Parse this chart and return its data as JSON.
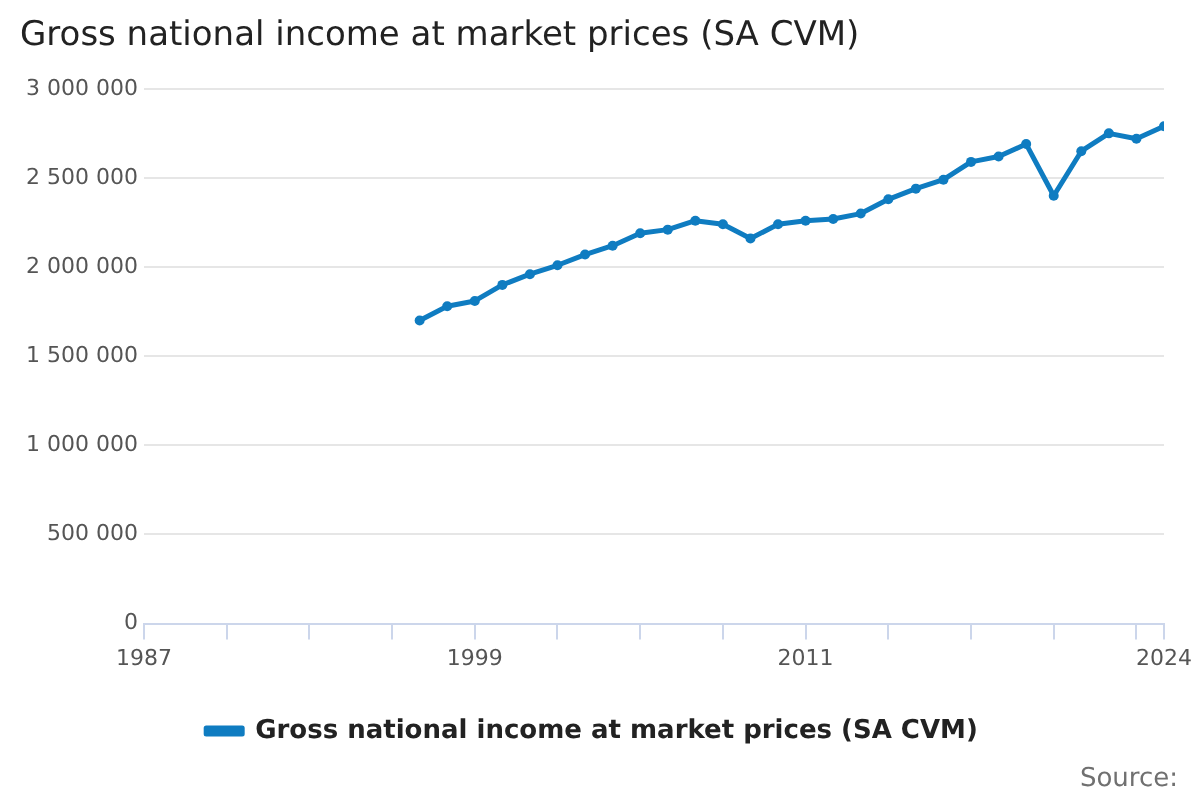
{
  "chart_data": {
    "type": "line",
    "title": "Gross national income at market prices (SA CVM)",
    "x": [
      1997,
      1998,
      1999,
      2000,
      2001,
      2002,
      2003,
      2004,
      2005,
      2006,
      2007,
      2008,
      2009,
      2010,
      2011,
      2012,
      2013,
      2014,
      2015,
      2016,
      2017,
      2018,
      2019,
      2020,
      2021,
      2022,
      2023,
      2024
    ],
    "series": [
      {
        "name": "Gross national income at market prices (SA CVM)",
        "color": "#0f7cc1",
        "values": [
          1700000,
          1780000,
          1810000,
          1900000,
          1960000,
          2010000,
          2070000,
          2120000,
          2190000,
          2210000,
          2260000,
          2240000,
          2160000,
          2240000,
          2260000,
          2270000,
          2300000,
          2380000,
          2440000,
          2490000,
          2590000,
          2620000,
          2690000,
          2400000,
          2650000,
          2750000,
          2720000,
          2790000
        ]
      }
    ],
    "xlim": [
      1987,
      2024
    ],
    "xticks": [
      1987,
      {
        "value": 1990,
        "label": null
      },
      {
        "value": 1993,
        "label": null
      },
      {
        "value": 1996,
        "label": null
      },
      1999,
      {
        "value": 2002,
        "label": null
      },
      {
        "value": 2005,
        "label": null
      },
      {
        "value": 2008,
        "label": null
      },
      2011,
      {
        "value": 2014,
        "label": null
      },
      {
        "value": 2017,
        "label": null
      },
      {
        "value": 2020,
        "label": null
      },
      {
        "value": 2023,
        "label": null
      },
      2024
    ],
    "ylim": [
      0,
      3000000
    ],
    "yticks": [
      {
        "value": 0,
        "label": "0"
      },
      {
        "value": 500000,
        "label": "500 000"
      },
      {
        "value": 1000000,
        "label": "1 000 000"
      },
      {
        "value": 1500000,
        "label": "1 500 000"
      },
      {
        "value": 2000000,
        "label": "2 000 000"
      },
      {
        "value": 2500000,
        "label": "2 500 000"
      },
      {
        "value": 3000000,
        "label": "3 000 000"
      }
    ],
    "grid": "y",
    "legend": "bottom",
    "marker": "circle",
    "line_style": "solid",
    "annotations": [
      "Source:"
    ]
  }
}
